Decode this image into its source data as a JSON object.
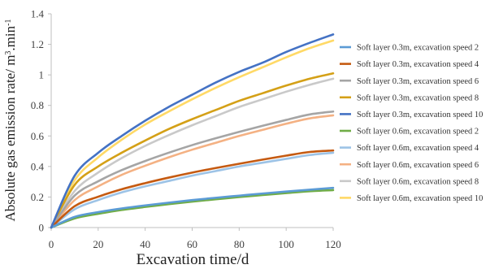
{
  "chart_data": {
    "type": "line",
    "title": "",
    "xlabel": "Excavation time/d",
    "ylabel_main": "Absolute gas emission rate/ m",
    "ylabel_sup1": "3",
    "ylabel_mid": ".min",
    "ylabel_sup2": "-1",
    "xlim": [
      0,
      120
    ],
    "ylim": [
      0,
      1.4
    ],
    "x_ticks": [
      "0",
      "20",
      "40",
      "60",
      "80",
      "100",
      "120"
    ],
    "y_ticks": [
      "0",
      "0.2",
      "0.4",
      "0.6",
      "0.8",
      "1",
      "1.2",
      "1.4"
    ],
    "grid": false,
    "legend_position": "right",
    "x": [
      0,
      10,
      20,
      30,
      40,
      50,
      60,
      70,
      80,
      90,
      100,
      110,
      120
    ],
    "series": [
      {
        "name": "Soft layer 0.3m, excavation speed 2",
        "color": "#5b9bd5",
        "values": [
          0,
          0.07,
          0.101,
          0.125,
          0.145,
          0.163,
          0.18,
          0.195,
          0.209,
          0.223,
          0.236,
          0.248,
          0.26
        ]
      },
      {
        "name": "Soft layer 0.3m, excavation speed 4",
        "color": "#c55a11",
        "values": [
          0,
          0.14,
          0.202,
          0.251,
          0.291,
          0.327,
          0.36,
          0.39,
          0.418,
          0.445,
          0.471,
          0.495,
          0.505
        ]
      },
      {
        "name": "Soft layer 0.3m, excavation speed 6",
        "color": "#a5a5a5",
        "values": [
          0,
          0.21,
          0.303,
          0.376,
          0.436,
          0.49,
          0.54,
          0.585,
          0.627,
          0.667,
          0.705,
          0.741,
          0.76
        ]
      },
      {
        "name": "Soft layer 0.3m, excavation speed 8",
        "color": "#d4a017",
        "values": [
          0,
          0.28,
          0.4,
          0.49,
          0.57,
          0.645,
          0.71,
          0.77,
          0.83,
          0.88,
          0.93,
          0.975,
          1.01
        ]
      },
      {
        "name": "Soft layer 0.3m, excavation speed 10",
        "color": "#4472c4",
        "values": [
          0,
          0.34,
          0.49,
          0.6,
          0.7,
          0.79,
          0.87,
          0.95,
          1.02,
          1.08,
          1.15,
          1.21,
          1.265
        ]
      },
      {
        "name": "Soft layer 0.6m, excavation speed 2",
        "color": "#70ad47",
        "values": [
          0,
          0.06,
          0.09,
          0.115,
          0.135,
          0.153,
          0.17,
          0.185,
          0.2,
          0.213,
          0.226,
          0.238,
          0.245
        ]
      },
      {
        "name": "Soft layer 0.6m, excavation speed 4",
        "color": "#9dc3e6",
        "values": [
          0,
          0.12,
          0.18,
          0.23,
          0.27,
          0.305,
          0.34,
          0.37,
          0.4,
          0.425,
          0.45,
          0.475,
          0.49
        ]
      },
      {
        "name": "Soft layer 0.6m, excavation speed 6",
        "color": "#f4b183",
        "values": [
          0,
          0.18,
          0.27,
          0.345,
          0.405,
          0.46,
          0.51,
          0.555,
          0.6,
          0.64,
          0.68,
          0.715,
          0.735
        ]
      },
      {
        "name": "Soft layer 0.6m, excavation speed 8",
        "color": "#c9c9c9",
        "values": [
          0,
          0.24,
          0.36,
          0.455,
          0.535,
          0.605,
          0.67,
          0.73,
          0.79,
          0.84,
          0.89,
          0.935,
          0.975
        ]
      },
      {
        "name": "Soft layer 0.6m, excavation speed 10",
        "color": "#ffd966",
        "values": [
          0,
          0.31,
          0.46,
          0.575,
          0.675,
          0.76,
          0.84,
          0.915,
          0.985,
          1.05,
          1.115,
          1.175,
          1.225
        ]
      }
    ]
  }
}
